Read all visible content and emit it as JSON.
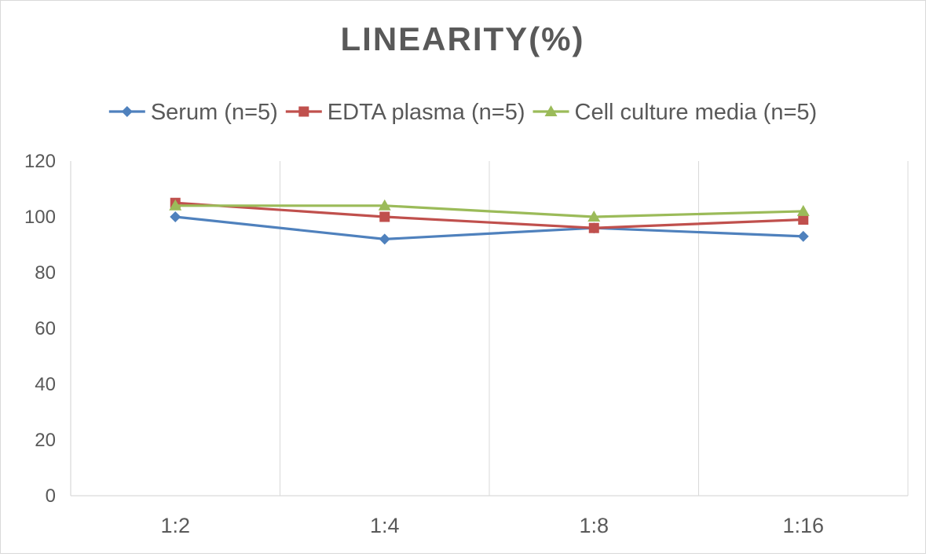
{
  "chart_data": {
    "type": "line",
    "title": "LINEARITY(%)",
    "xlabel": "",
    "ylabel": "",
    "categories": [
      "1:2",
      "1:4",
      "1:8",
      "1:16"
    ],
    "ylim": [
      0,
      120
    ],
    "yticks": [
      0,
      20,
      40,
      60,
      80,
      100,
      120
    ],
    "grid": "vertical",
    "legend_position": "top",
    "series": [
      {
        "name": "Serum (n=5)",
        "color": "#4F81BD",
        "marker": "diamond",
        "values": [
          100,
          92,
          96,
          93
        ]
      },
      {
        "name": "EDTA plasma (n=5)",
        "color": "#C0504D",
        "marker": "square",
        "values": [
          105,
          100,
          96,
          99
        ]
      },
      {
        "name": "Cell culture media (n=5)",
        "color": "#9BBB59",
        "marker": "triangle",
        "values": [
          104,
          104,
          100,
          102
        ]
      }
    ]
  }
}
